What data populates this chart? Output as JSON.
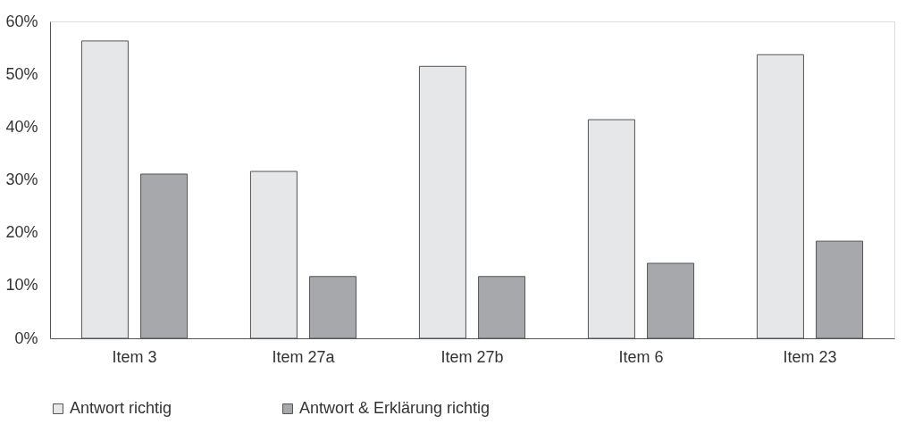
{
  "chart_data": {
    "type": "bar",
    "categories": [
      "Item 3",
      "Item 27a",
      "Item 27b",
      "Item 6",
      "Item 23"
    ],
    "series": [
      {
        "name": "Antwort richtig",
        "color": "#e6e7e9",
        "values": [
          56.3,
          31.6,
          51.5,
          41.4,
          53.7
        ]
      },
      {
        "name": "Antwort & Erklärung richtig",
        "color": "#a7a8ab",
        "values": [
          31.1,
          11.7,
          11.7,
          14.2,
          18.4
        ]
      }
    ],
    "ylim": [
      0,
      60
    ],
    "yticks": [
      {
        "value": 0,
        "label": "0%"
      },
      {
        "value": 10,
        "label": "10%"
      },
      {
        "value": 20,
        "label": "20%"
      },
      {
        "value": 30,
        "label": "30%"
      },
      {
        "value": 40,
        "label": "40%"
      },
      {
        "value": 50,
        "label": "50%"
      },
      {
        "value": 60,
        "label": "60%"
      }
    ],
    "legend": "bottom"
  }
}
